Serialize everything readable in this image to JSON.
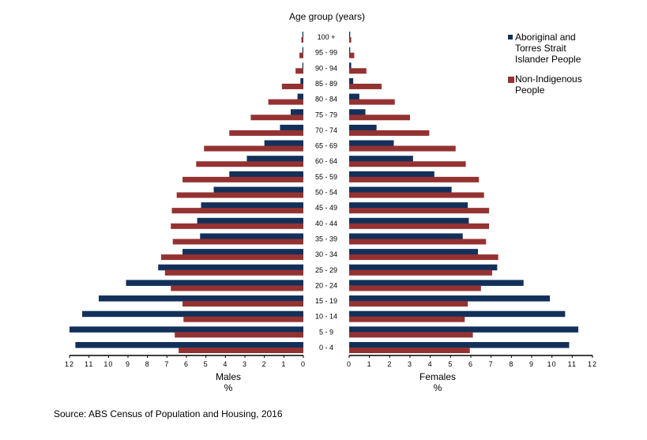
{
  "chart_data": {
    "type": "bar",
    "orientation": "horizontal-population-pyramid",
    "title": "Age group (years)",
    "categories": [
      "0 - 4",
      "5 - 9",
      "10 - 14",
      "15 - 19",
      "20 - 24",
      "25 - 29",
      "30 - 34",
      "35 - 39",
      "40 - 44",
      "45 - 49",
      "50 - 54",
      "55 - 59",
      "60 - 64",
      "65 - 69",
      "70 - 74",
      "75 - 79",
      "80 - 84",
      "85 - 89",
      "90 - 94",
      "95 - 99",
      "100 +"
    ],
    "left_panel": {
      "xlabel": "Males",
      "unit": "%",
      "xlim": [
        12,
        0
      ],
      "ticks": [
        "12",
        "11",
        "10",
        "9",
        "8",
        "7",
        "6",
        "5",
        "4",
        "3",
        "2",
        "1",
        "0"
      ]
    },
    "right_panel": {
      "xlabel": "Females",
      "unit": "%",
      "xlim": [
        0,
        12
      ],
      "ticks": [
        "0",
        "1",
        "2",
        "3",
        "4",
        "5",
        "6",
        "7",
        "8",
        "9",
        "10",
        "11",
        "12"
      ]
    },
    "series": [
      {
        "name": "Aboriginal and Torres Strait Islander People",
        "color": "#12305a",
        "males": [
          11.7,
          12.0,
          11.35,
          10.5,
          9.1,
          7.45,
          6.2,
          5.3,
          5.45,
          5.25,
          4.6,
          3.8,
          2.9,
          2.0,
          1.2,
          0.65,
          0.3,
          0.15,
          0.05,
          0.05,
          0.05
        ],
        "females": [
          10.85,
          11.3,
          10.65,
          9.9,
          8.6,
          7.3,
          6.35,
          5.6,
          5.9,
          5.85,
          5.05,
          4.2,
          3.15,
          2.2,
          1.35,
          0.8,
          0.5,
          0.2,
          0.1,
          0.05,
          0.05
        ]
      },
      {
        "name": "Non-Indigenous People",
        "color": "#943232",
        "males": [
          6.4,
          6.6,
          6.15,
          6.2,
          6.8,
          7.1,
          7.3,
          6.7,
          6.8,
          6.75,
          6.5,
          6.2,
          5.5,
          5.1,
          3.8,
          2.7,
          1.8,
          1.1,
          0.4,
          0.2,
          0.1
        ],
        "females": [
          5.95,
          6.1,
          5.7,
          5.85,
          6.5,
          7.05,
          7.35,
          6.75,
          6.9,
          6.9,
          6.65,
          6.4,
          5.75,
          5.25,
          3.95,
          3.0,
          2.25,
          1.6,
          0.85,
          0.25,
          0.1
        ]
      }
    ],
    "legend": {
      "position": "top-right",
      "labels": [
        [
          "Aboriginal and",
          "Torres Strait",
          "Islander People"
        ],
        [
          "Non-Indigenous",
          "People"
        ]
      ]
    },
    "grid": false
  },
  "source": "Source: ABS Census of Population and Housing, 2016"
}
